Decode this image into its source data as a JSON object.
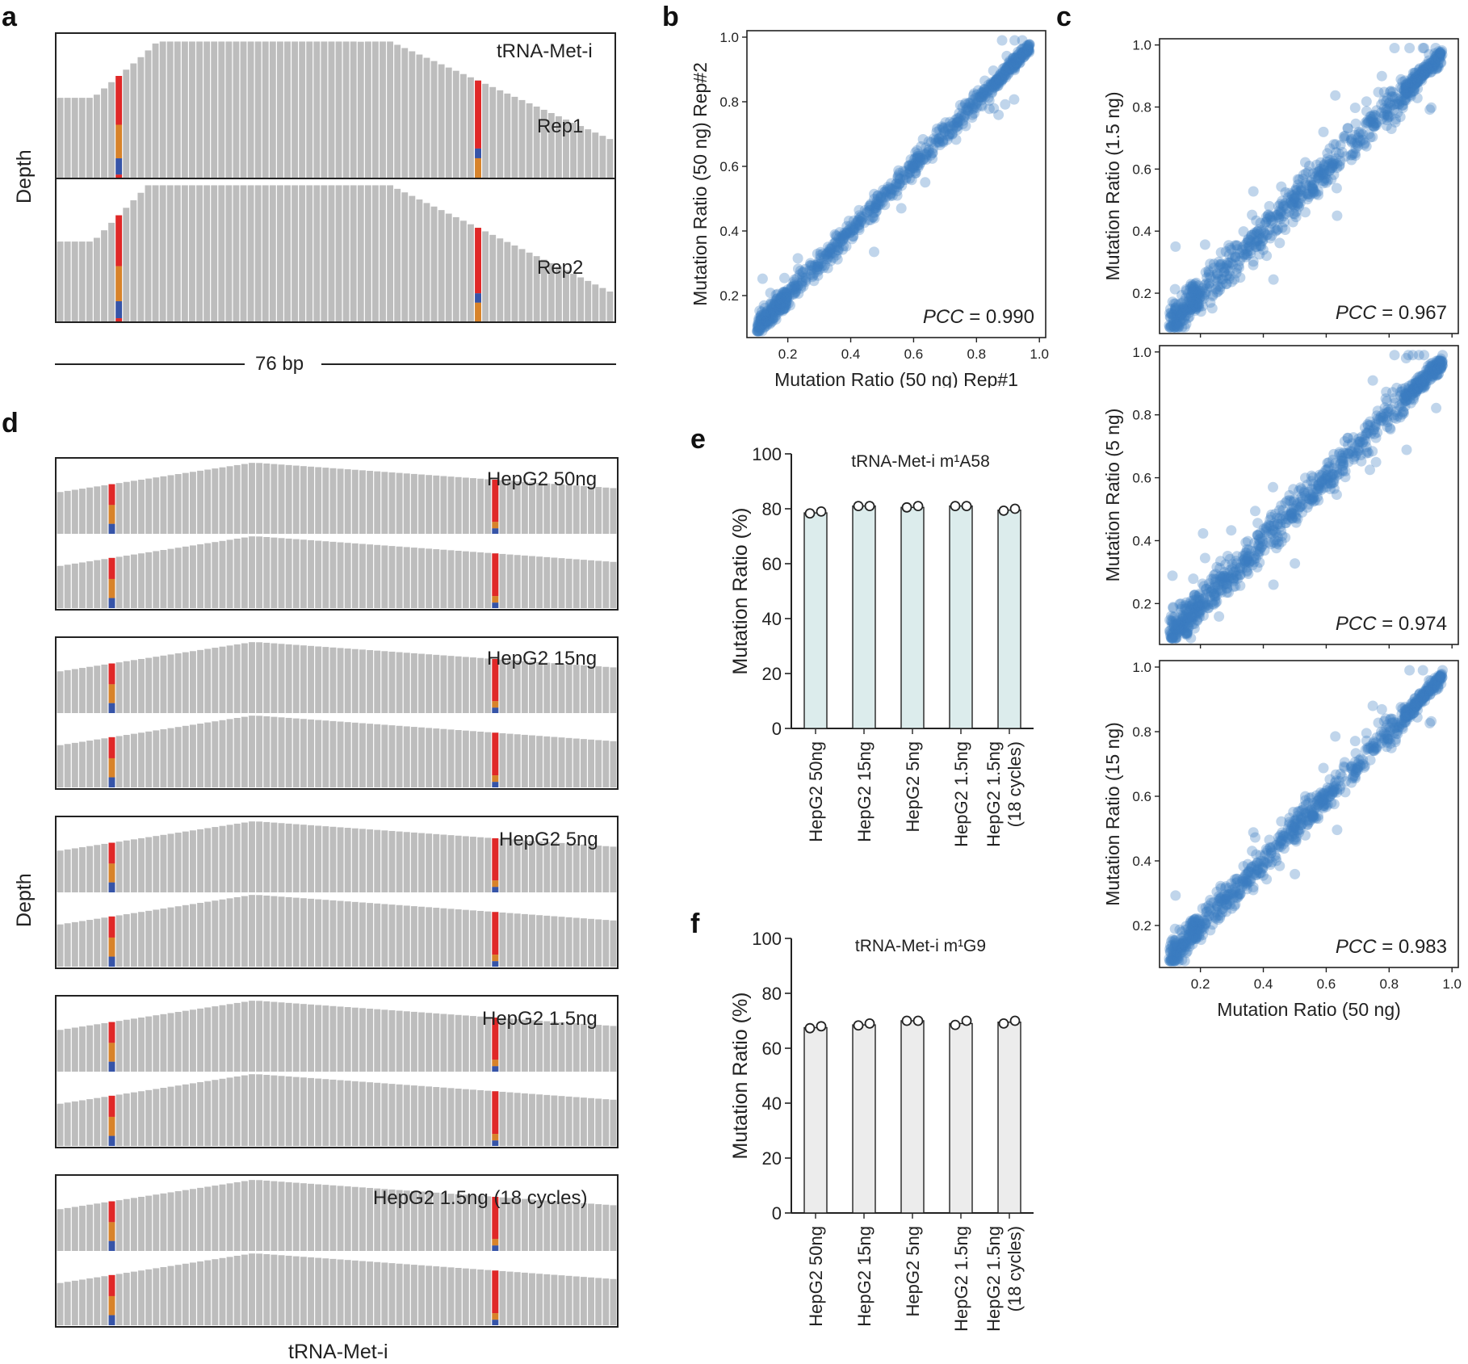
{
  "panels": {
    "a": "a",
    "b": "b",
    "c": "c",
    "d": "d",
    "e": "e",
    "f": "f"
  },
  "colors": {
    "bar": "#bdbdbd",
    "red": "#e02828",
    "orange": "#d8832a",
    "blue": "#3654a8",
    "scatter": "#3b7dc0",
    "bar_e": "#dcecec",
    "bar_f": "#ececec"
  },
  "panel_a": {
    "title": "tRNA-Met-i",
    "y_label": "Depth",
    "rep1": "Rep1",
    "rep2": "Rep2",
    "length": "76 bp"
  },
  "panel_d": {
    "y_label": "Depth",
    "x_label": "tRNA-Met-i",
    "samples": [
      "HepG2 50ng",
      "HepG2 15ng",
      "HepG2 5ng",
      "HepG2 1.5ng",
      "HepG2 1.5ng (18 cycles)"
    ]
  },
  "chart_data": [
    {
      "id": "b",
      "type": "scatter",
      "xlabel": "Mutation Ratio (50 ng) Rep#1",
      "ylabel": "Mutation Ratio (50 ng) Rep#2",
      "annotation": {
        "stat": "PCC",
        "value": "0.990"
      },
      "xlim": [
        0.07,
        1.02
      ],
      "ylim": [
        0.07,
        1.02
      ],
      "xticks": [
        "0.2",
        "0.4",
        "0.6",
        "0.8",
        "1.0"
      ],
      "yticks": [
        "0.2",
        "0.4",
        "0.6",
        "0.8",
        "1.0"
      ]
    },
    {
      "id": "c1",
      "type": "scatter",
      "xlabel": "",
      "ylabel": "Mutation Ratio (1.5 ng)",
      "annotation": {
        "stat": "PCC",
        "value": "0.967"
      },
      "xlim": [
        0.07,
        1.02
      ],
      "ylim": [
        0.07,
        1.02
      ],
      "xticks": [],
      "yticks": [
        "0.2",
        "0.4",
        "0.6",
        "0.8",
        "1.0"
      ]
    },
    {
      "id": "c2",
      "type": "scatter",
      "xlabel": "",
      "ylabel": "Mutation Ratio (5 ng)",
      "annotation": {
        "stat": "PCC",
        "value": "0.974"
      },
      "xlim": [
        0.07,
        1.02
      ],
      "ylim": [
        0.07,
        1.02
      ],
      "xticks": [],
      "yticks": [
        "0.2",
        "0.4",
        "0.6",
        "0.8",
        "1.0"
      ]
    },
    {
      "id": "c3",
      "type": "scatter",
      "xlabel": "Mutation Ratio (50 ng)",
      "ylabel": "Mutation Ratio (15 ng)",
      "annotation": {
        "stat": "PCC",
        "value": "0.983"
      },
      "xlim": [
        0.07,
        1.02
      ],
      "ylim": [
        0.07,
        1.02
      ],
      "xticks": [
        "0.2",
        "0.4",
        "0.6",
        "0.8",
        "1.0"
      ],
      "yticks": [
        "0.2",
        "0.4",
        "0.6",
        "0.8",
        "1.0"
      ]
    },
    {
      "id": "e",
      "type": "bar",
      "title": "tRNA-Met-i m¹A58",
      "ylabel": "Mutation Ratio (%)",
      "ylim": [
        0,
        100
      ],
      "yticks": [
        "0",
        "20",
        "40",
        "60",
        "80",
        "100"
      ],
      "categories": [
        "HepG2 50ng",
        "HepG2 15ng",
        "HepG2 5ng",
        "HepG2 1.5ng",
        "HepG2 1.5ng\n(18 cycles)"
      ],
      "values": [
        78.5,
        81.0,
        80.5,
        81.0,
        79.5
      ],
      "points": [
        [
          78.3,
          79.0
        ],
        [
          81.0,
          81.0
        ],
        [
          80.5,
          81.0
        ],
        [
          81.0,
          81.0
        ],
        [
          79.3,
          80.0
        ]
      ]
    },
    {
      "id": "f",
      "type": "bar",
      "title": "tRNA-Met-i m¹G9",
      "ylabel": "Mutation Ratio (%)",
      "ylim": [
        0,
        100
      ],
      "yticks": [
        "0",
        "20",
        "40",
        "60",
        "80",
        "100"
      ],
      "categories": [
        "HepG2 50ng",
        "HepG2 15ng",
        "HepG2 5ng",
        "HepG2 1.5ng",
        "HepG2 1.5ng\n(18 cycles)"
      ],
      "values": [
        67.5,
        68.5,
        70.0,
        69.0,
        69.5
      ],
      "points": [
        [
          67.3,
          68.0
        ],
        [
          68.3,
          69.0
        ],
        [
          70.0,
          70.0
        ],
        [
          68.5,
          70.0
        ],
        [
          69.0,
          70.0
        ]
      ]
    }
  ]
}
